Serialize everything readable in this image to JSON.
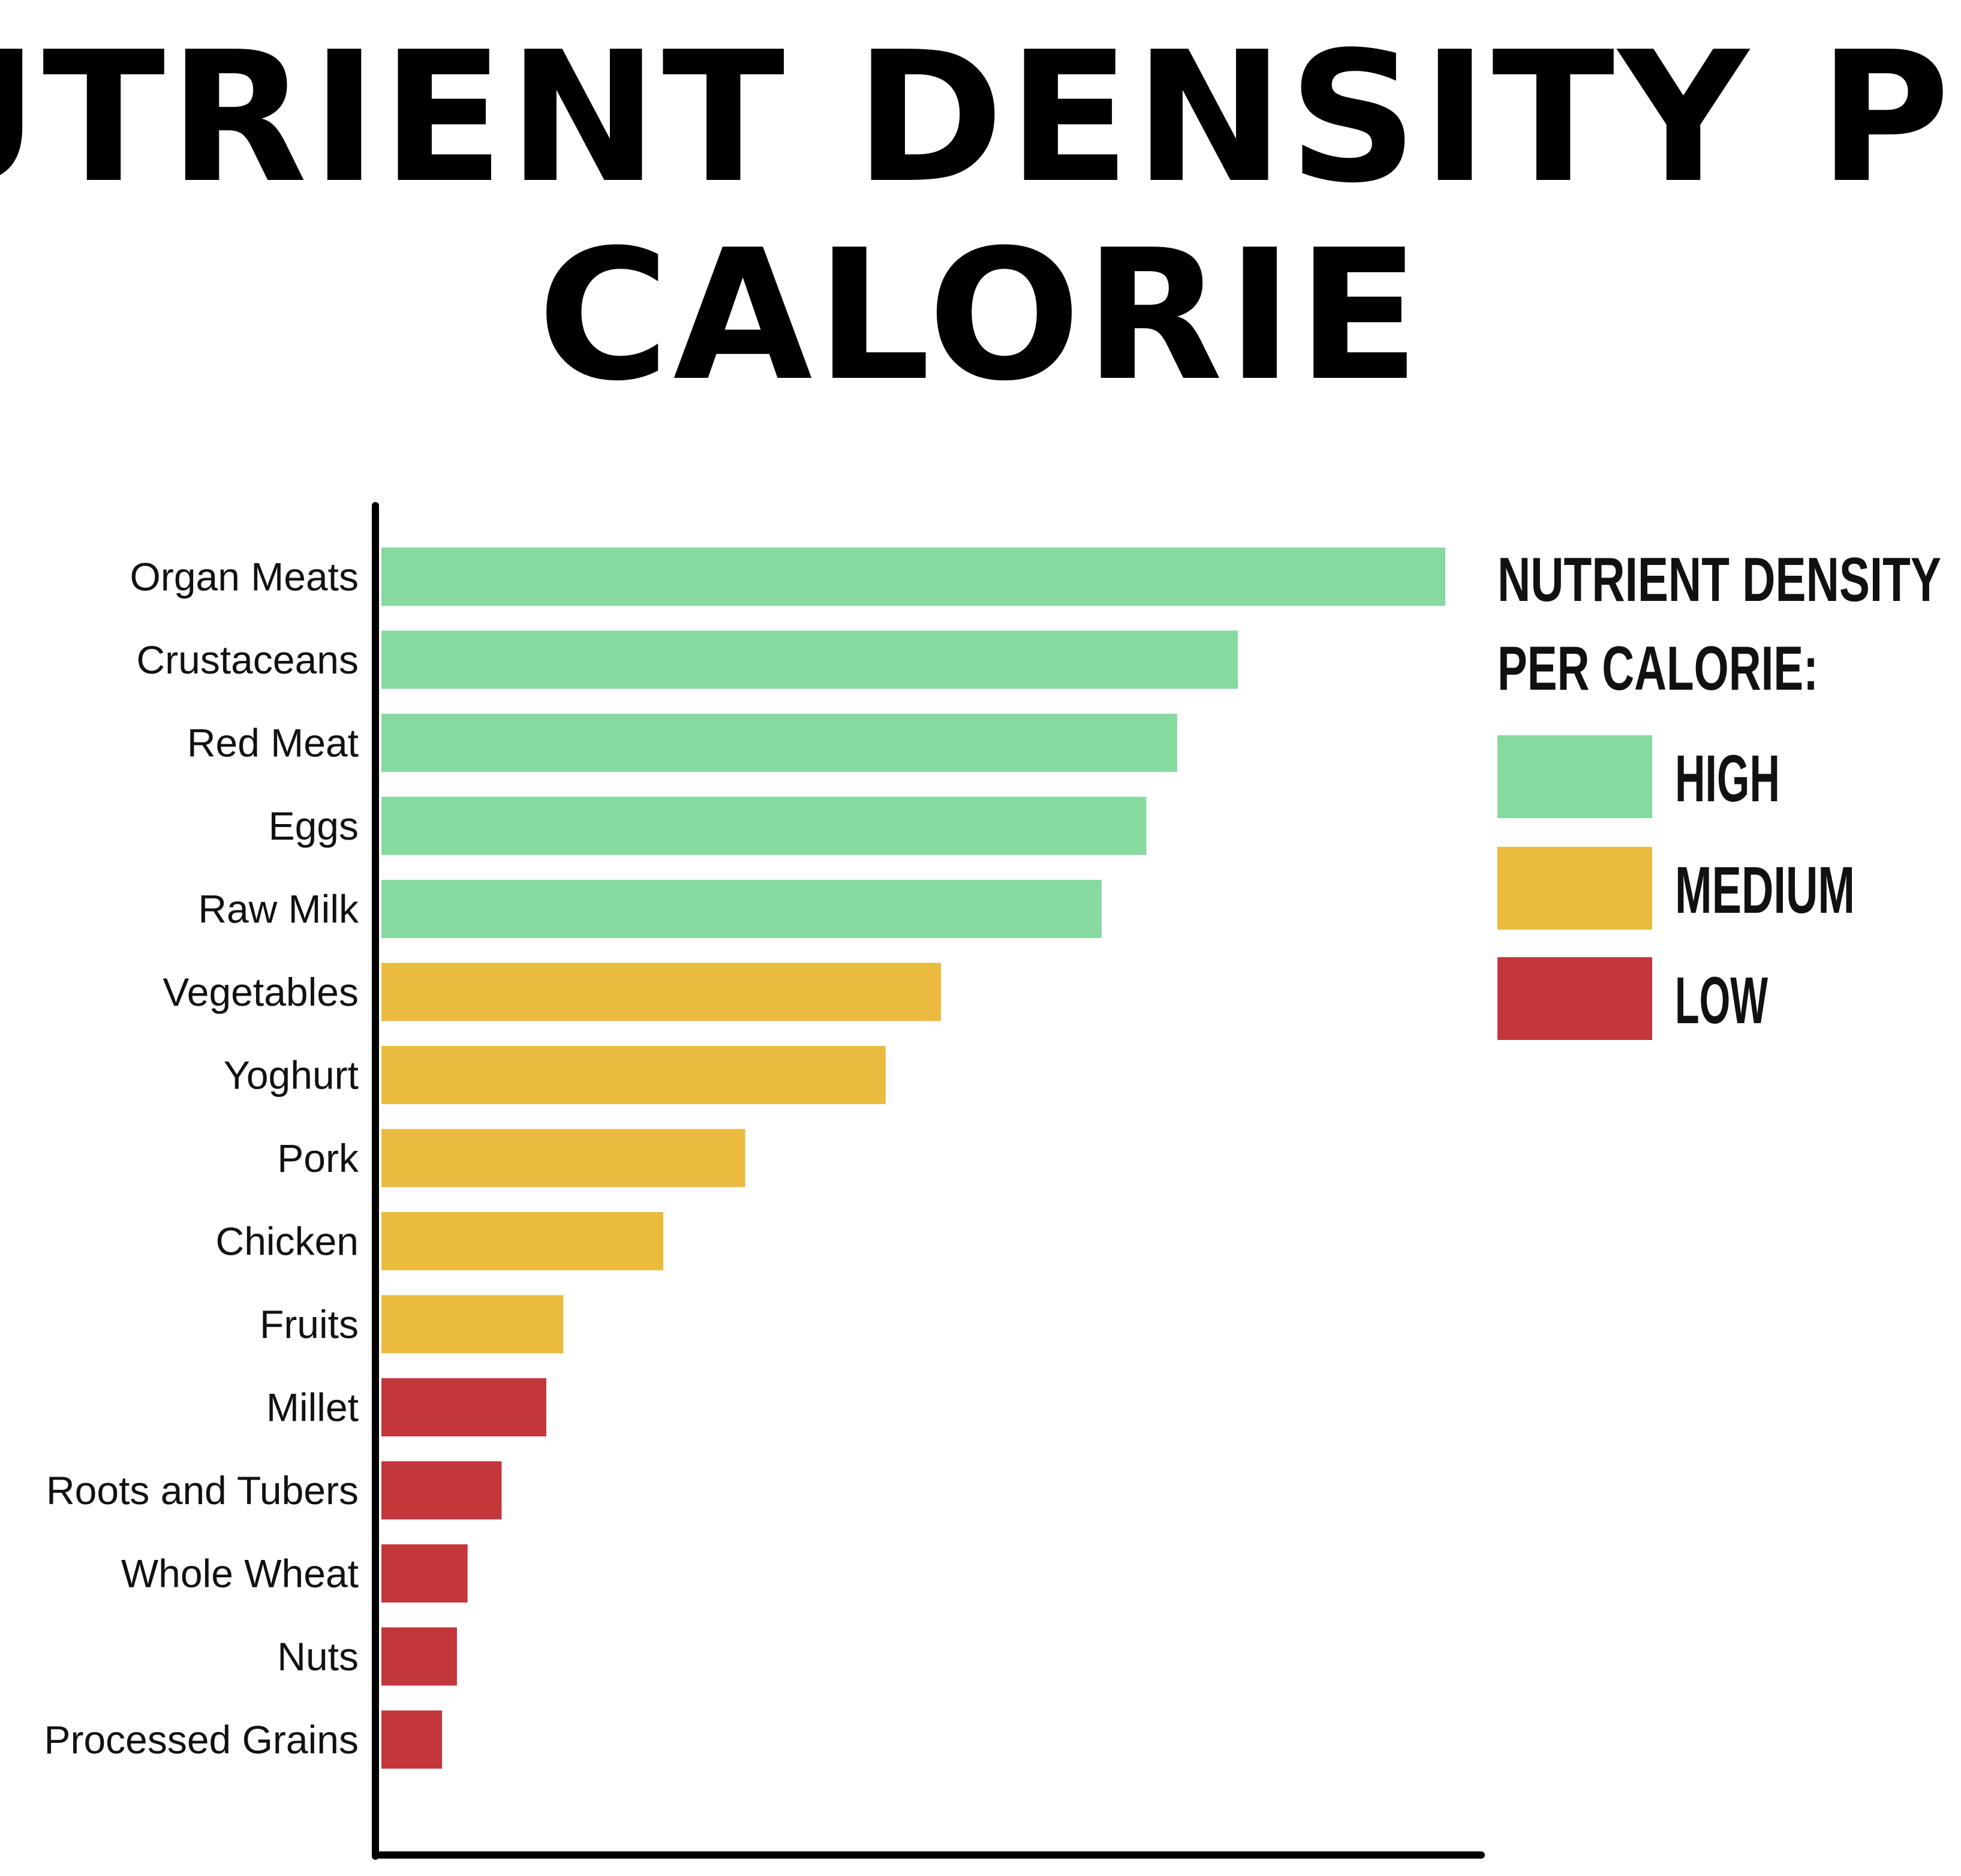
{
  "title": {
    "line1": "NUTRIENT DENSITY PER",
    "line2": "CALORIE"
  },
  "colors": {
    "high": "#86D99F",
    "medium": "#EBBB40",
    "low": "#C3363A",
    "axis": "#000000",
    "text": "#111111"
  },
  "chart_data": {
    "type": "bar",
    "orientation": "horizontal",
    "title": "NUTRIENT DENSITY PER CALORIE",
    "xlabel": "",
    "ylabel": "",
    "xlim": [
      0,
      100
    ],
    "grid": false,
    "legend_position": "top-right",
    "categories": [
      "Organ Meats",
      "Crustaceans",
      "Red Meat",
      "Eggs",
      "Raw Milk",
      "Vegetables",
      "Yoghurt",
      "Pork",
      "Chicken",
      "Fruits",
      "Millet",
      "Roots and Tubers",
      "Whole Wheat",
      "Nuts",
      "Processed Grains"
    ],
    "values": [
      100,
      80.5,
      74.8,
      71.9,
      67.7,
      52.6,
      47.4,
      34.2,
      26.5,
      17.1,
      15.5,
      11.3,
      8.1,
      7.1,
      5.7
    ],
    "levels": [
      "high",
      "high",
      "high",
      "high",
      "high",
      "medium",
      "medium",
      "medium",
      "medium",
      "medium",
      "low",
      "low",
      "low",
      "low",
      "low"
    ],
    "legend": {
      "title_line1": "NUTRIENT DENSITY",
      "title_line2": "PER CALORIE:",
      "entries": [
        {
          "key": "high",
          "label": "HIGH"
        },
        {
          "key": "medium",
          "label": "MEDIUM"
        },
        {
          "key": "low",
          "label": "LOW"
        }
      ]
    }
  }
}
